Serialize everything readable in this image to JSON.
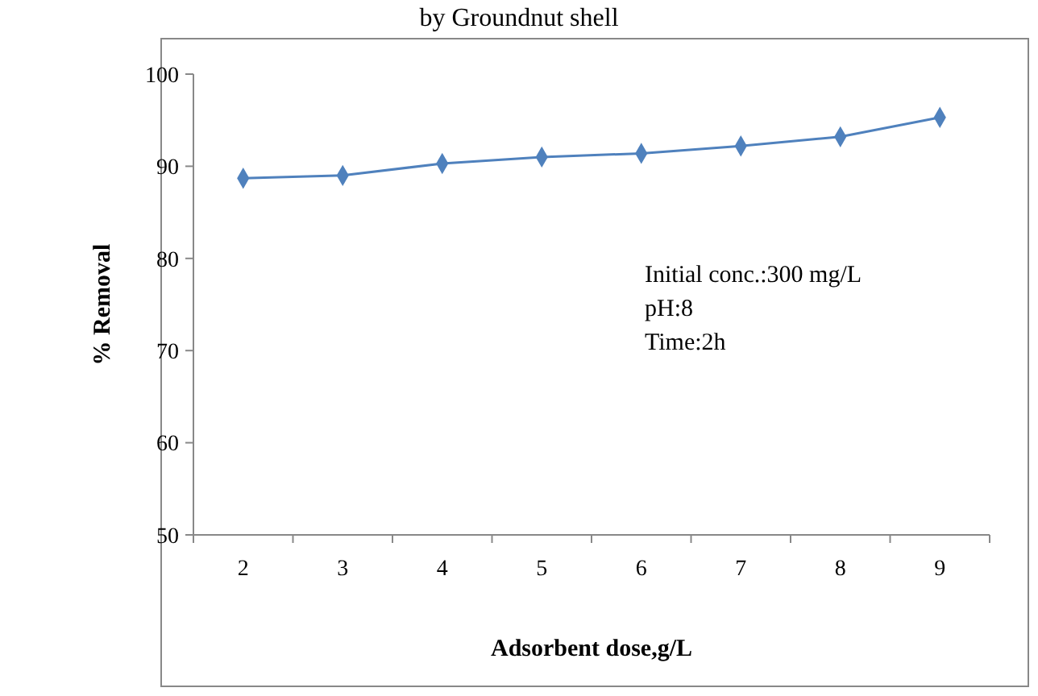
{
  "chart_data": {
    "type": "line",
    "title": "by Groundnut shell",
    "xlabel": "Adsorbent dose,g/L",
    "ylabel": "% Removal",
    "categories": [
      "2",
      "3",
      "4",
      "5",
      "6",
      "7",
      "8",
      "9"
    ],
    "series": [
      {
        "color": "#4f81bd",
        "values": [
          88.7,
          89.0,
          90.3,
          91.0,
          91.4,
          92.2,
          93.2,
          95.3
        ]
      }
    ],
    "ylim": [
      50,
      100
    ],
    "yticks": [
      50,
      60,
      70,
      80,
      90,
      100
    ],
    "grid": false,
    "marker": "diamond",
    "annotations": [
      "Initial conc.:300 mg/L",
      "pH:8",
      "Time:2h"
    ]
  }
}
